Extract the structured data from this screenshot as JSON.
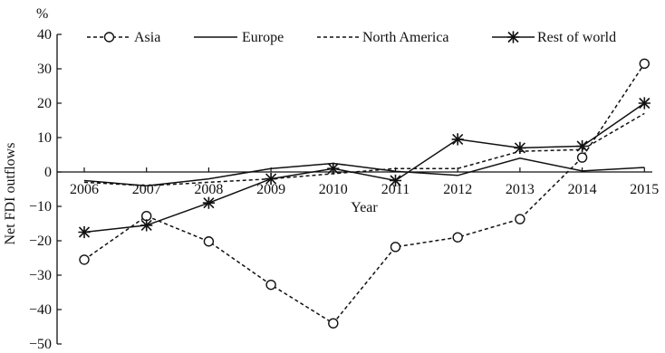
{
  "chart_data": {
    "type": "line",
    "title": "",
    "xlabel": "Year",
    "ylabel": "Net FDI outflows",
    "yunit": "%",
    "categories": [
      "2006",
      "2007",
      "2008",
      "2009",
      "2010",
      "2011",
      "2012",
      "2013",
      "2014",
      "2015"
    ],
    "ylim": [
      -50,
      40
    ],
    "yticks": [
      40,
      30,
      20,
      10,
      0,
      -10,
      -20,
      -30,
      -40,
      -50
    ],
    "ytick_labels": [
      "40",
      "30",
      "20",
      "10",
      "0",
      "−10",
      "−20",
      "−30",
      "−40",
      "−50"
    ],
    "grid": false,
    "legend_position": "top",
    "series": [
      {
        "name": "Asia",
        "style": "dashed",
        "marker": "circle",
        "values": [
          -25.5,
          -12.8,
          -20.2,
          -32.8,
          -44.0,
          -21.8,
          -19.0,
          -13.7,
          4.2,
          31.5
        ]
      },
      {
        "name": "Europe",
        "style": "solid",
        "marker": "none",
        "values": [
          -2.5,
          -4.0,
          -2.0,
          1.0,
          2.5,
          0.2,
          -1.0,
          4.0,
          0.3,
          1.3
        ]
      },
      {
        "name": "North America",
        "style": "dashed",
        "marker": "none",
        "values": [
          -3.0,
          -4.0,
          -3.0,
          -2.0,
          -0.5,
          1.0,
          1.0,
          6.0,
          6.5,
          17.0
        ]
      },
      {
        "name": "Rest of world",
        "style": "solid",
        "marker": "star",
        "values": [
          -17.5,
          -15.5,
          -9.0,
          -2.0,
          1.0,
          -2.5,
          9.5,
          7.0,
          7.5,
          20.0
        ]
      }
    ]
  }
}
